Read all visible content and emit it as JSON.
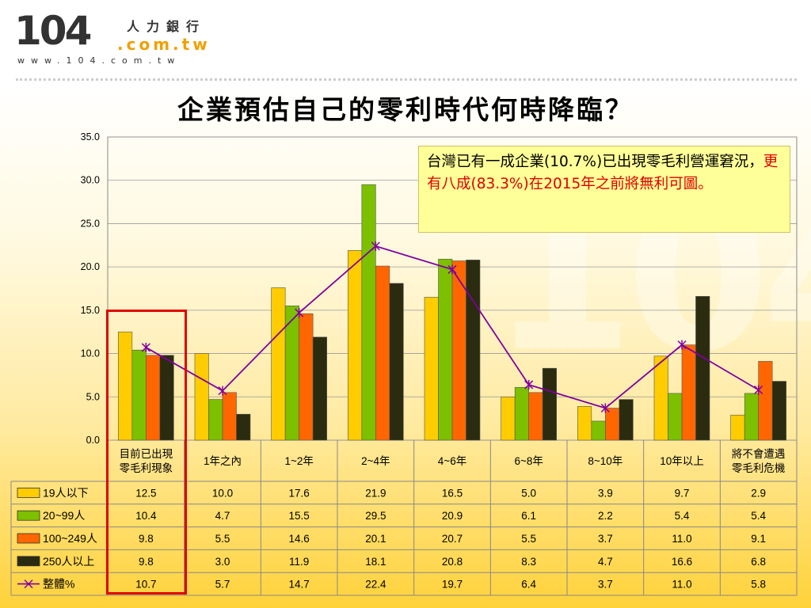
{
  "logo": {
    "number": "104",
    "chinese": "人力銀行",
    "domain": ".com.tw",
    "url": "www.104.com.tw"
  },
  "title": "企業預估自己的零利時代何時降臨？",
  "callout": {
    "part1": "台灣已有一成企業(10.7%)已出現零毛利營運窘況，",
    "part2": "更有八成(83.3%)在2015年之前將無利可圖。"
  },
  "chart_data": {
    "type": "bar",
    "categories": [
      "目前已出現\n零毛利現象",
      "1年之內",
      "1~2年",
      "2~4年",
      "4~6年",
      "6~8年",
      "8~10年",
      "10年以上",
      "將不會遭遇\n零毛利危機"
    ],
    "series": [
      {
        "name": "19人以下",
        "kind": "bar",
        "color": "#ffcc00",
        "values": [
          12.5,
          10.0,
          17.6,
          21.9,
          16.5,
          5.0,
          3.9,
          9.7,
          2.9
        ]
      },
      {
        "name": "20~99人",
        "kind": "bar",
        "color": "#7cc000",
        "values": [
          10.4,
          4.7,
          15.5,
          29.5,
          20.9,
          6.1,
          2.2,
          5.4,
          5.4
        ]
      },
      {
        "name": "100~249人",
        "kind": "bar",
        "color": "#ff6600",
        "values": [
          9.8,
          5.5,
          14.6,
          20.1,
          20.7,
          5.5,
          3.7,
          11.0,
          9.1
        ]
      },
      {
        "name": "250人以上",
        "kind": "bar",
        "color": "#2b2b10",
        "values": [
          9.8,
          3.0,
          11.9,
          18.1,
          20.8,
          8.3,
          4.7,
          16.6,
          6.8
        ]
      },
      {
        "name": "整體%",
        "kind": "line",
        "color": "#8000a0",
        "values": [
          10.7,
          5.7,
          14.7,
          22.4,
          19.7,
          6.4,
          3.7,
          11.0,
          5.8
        ]
      }
    ],
    "ylim": [
      0,
      35
    ],
    "yticks": [
      "0.0",
      "5.0",
      "10.0",
      "15.0",
      "20.0",
      "25.0",
      "30.0",
      "35.0"
    ],
    "grid": true,
    "legend": "data-table"
  }
}
